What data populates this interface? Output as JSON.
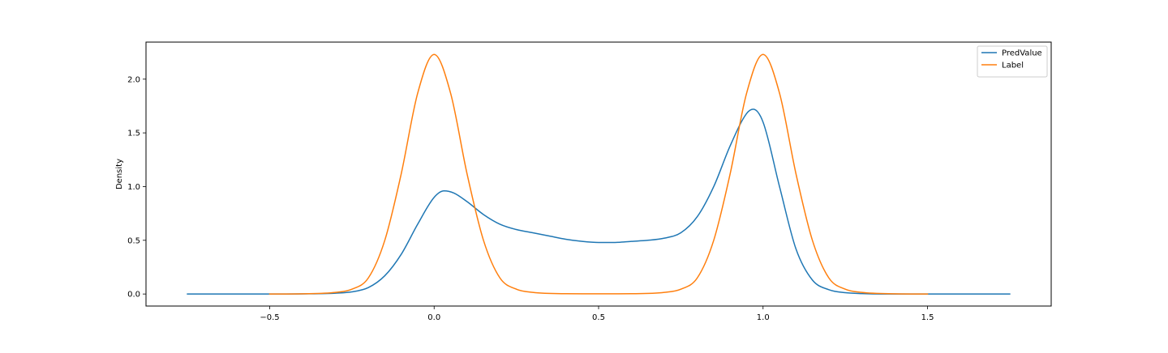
{
  "chart_data": {
    "type": "line",
    "title": "",
    "xlabel": "",
    "ylabel": "Density",
    "xlim": [
      -0.876,
      1.876
    ],
    "ylim": [
      -0.112,
      2.345
    ],
    "xticks": [
      -0.5,
      0.0,
      0.5,
      1.0,
      1.5
    ],
    "xtick_labels": [
      "−0.5",
      "0.0",
      "0.5",
      "1.0",
      "1.5"
    ],
    "yticks": [
      0.0,
      0.5,
      1.0,
      1.5,
      2.0
    ],
    "ytick_labels": [
      "0.0",
      "0.5",
      "1.0",
      "1.5",
      "2.0"
    ],
    "grid": false,
    "legend": {
      "position": "top-right"
    },
    "series": [
      {
        "name": "PredValue",
        "color": "#1f77b4",
        "x": [
          -0.75,
          -0.5,
          -0.35,
          -0.3,
          -0.25,
          -0.2,
          -0.15,
          -0.1,
          -0.05,
          0.0,
          0.03,
          0.06,
          0.1,
          0.15,
          0.2,
          0.25,
          0.3,
          0.35,
          0.4,
          0.45,
          0.5,
          0.55,
          0.6,
          0.65,
          0.7,
          0.75,
          0.8,
          0.85,
          0.9,
          0.95,
          0.97,
          1.0,
          1.05,
          1.1,
          1.15,
          1.2,
          1.25,
          1.3,
          1.4,
          1.5,
          1.75
        ],
        "y": [
          0.0,
          0.0,
          0.003,
          0.008,
          0.02,
          0.06,
          0.17,
          0.37,
          0.65,
          0.9,
          0.96,
          0.94,
          0.86,
          0.74,
          0.65,
          0.6,
          0.57,
          0.54,
          0.51,
          0.49,
          0.48,
          0.48,
          0.49,
          0.5,
          0.52,
          0.57,
          0.72,
          1.0,
          1.38,
          1.68,
          1.72,
          1.6,
          1.0,
          0.42,
          0.13,
          0.04,
          0.012,
          0.004,
          0.0,
          0.0,
          0.0
        ]
      },
      {
        "name": "Label",
        "color": "#ff7f0e",
        "x": [
          -0.5,
          -0.4,
          -0.3,
          -0.25,
          -0.2,
          -0.15,
          -0.1,
          -0.05,
          0.0,
          0.05,
          0.1,
          0.15,
          0.2,
          0.25,
          0.3,
          0.4,
          0.5,
          0.6,
          0.7,
          0.75,
          0.8,
          0.85,
          0.9,
          0.95,
          1.0,
          1.05,
          1.1,
          1.15,
          1.2,
          1.25,
          1.3,
          1.4,
          1.5
        ],
        "y": [
          0.0,
          0.002,
          0.015,
          0.045,
          0.15,
          0.5,
          1.12,
          1.87,
          2.23,
          1.87,
          1.12,
          0.5,
          0.15,
          0.045,
          0.015,
          0.003,
          0.002,
          0.003,
          0.015,
          0.045,
          0.15,
          0.5,
          1.12,
          1.87,
          2.23,
          1.87,
          1.12,
          0.5,
          0.15,
          0.045,
          0.015,
          0.002,
          0.0
        ]
      }
    ]
  }
}
